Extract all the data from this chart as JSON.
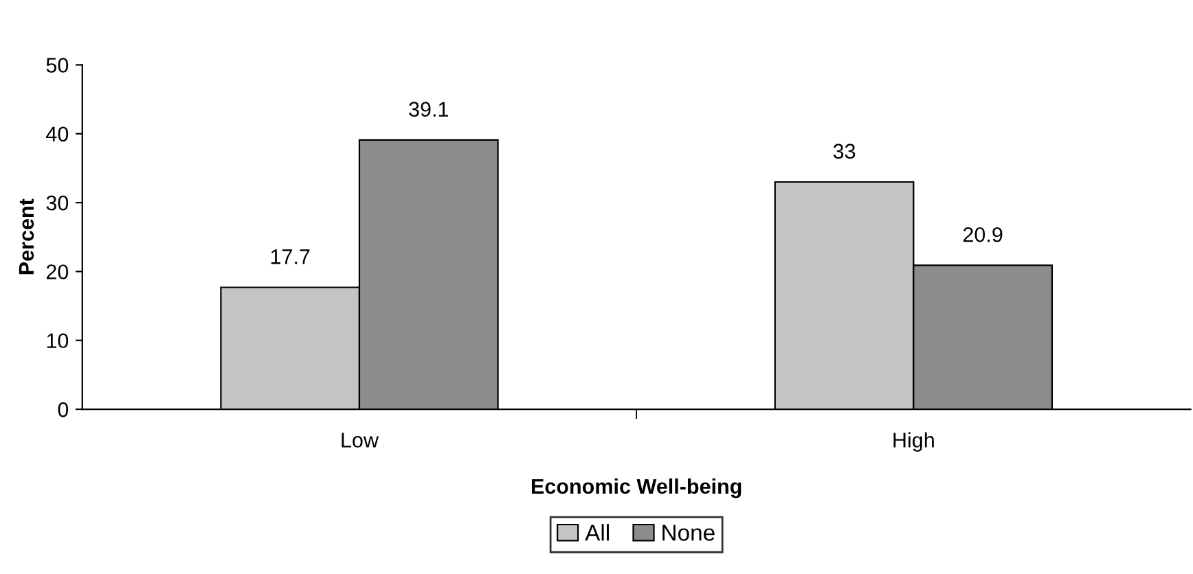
{
  "chart_data": {
    "type": "bar",
    "xlabel": "Economic Well-being",
    "ylabel": "Percent",
    "categories": [
      "Low",
      "High"
    ],
    "series": [
      {
        "name": "All",
        "color": "#c4c4c4",
        "values": [
          17.7,
          33
        ]
      },
      {
        "name": "None",
        "color": "#8c8c8c",
        "values": [
          39.1,
          20.9
        ]
      }
    ],
    "ylim": [
      0,
      50
    ],
    "yticks": [
      0,
      10,
      20,
      30,
      40,
      50
    ],
    "grid": false,
    "legend": "bottom",
    "data_labels": true
  }
}
